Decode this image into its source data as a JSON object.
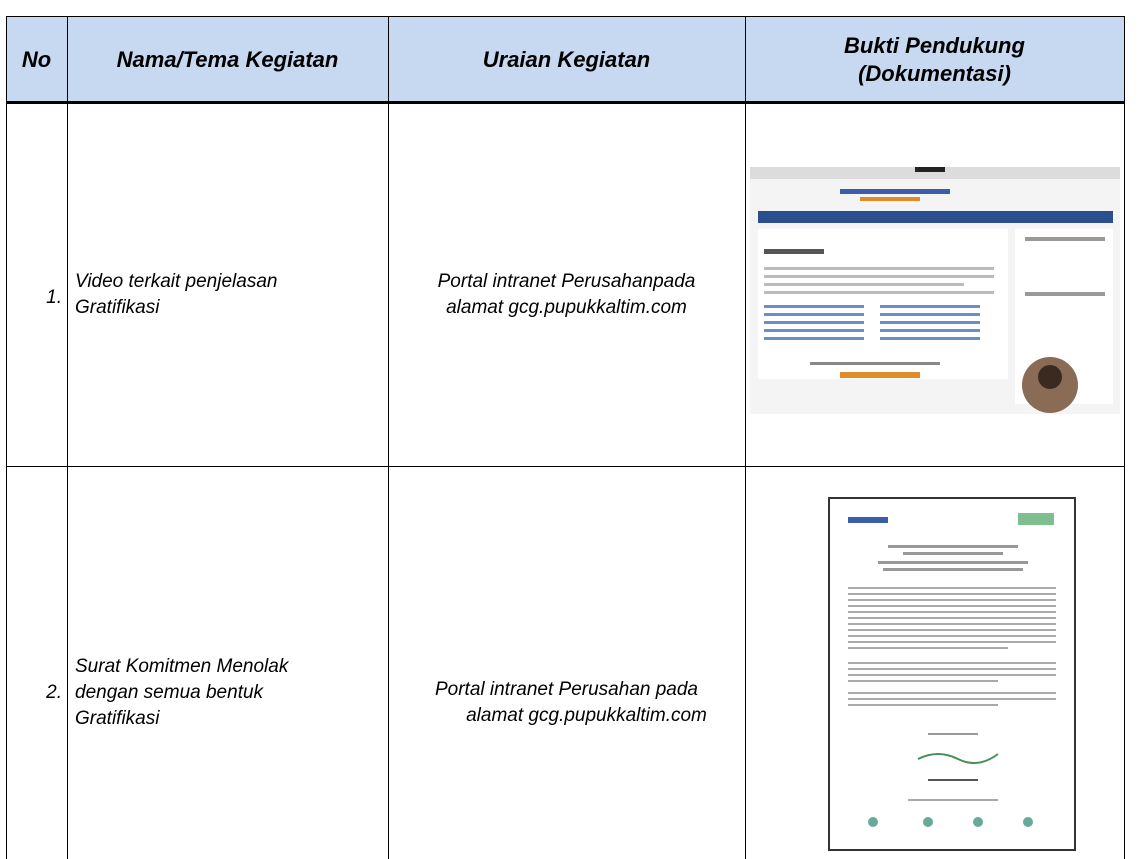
{
  "table": {
    "header": [
      "No",
      "Nama/Tema Kegiatan",
      "Uraian Kegiatan",
      [
        "Bukti Pendukung",
        "(Dokumentasi)"
      ]
    ],
    "rows": [
      {
        "no": "1.",
        "name": [
          "Video terkait penjelasan",
          "Gratifikasi"
        ],
        "description": [
          "Portal intranet Perusahanpada",
          "alamat gcg.pupukkaltim.com"
        ]
      },
      {
        "no": "2.",
        "name": [
          "Surat Komitmen Menolak",
          "dengan semua bentuk",
          "Gratifikasi"
        ],
        "description": [
          "Portal intranet Perusahan pada",
          "alamat gcg.pupukkaltim.com"
        ]
      }
    ]
  }
}
